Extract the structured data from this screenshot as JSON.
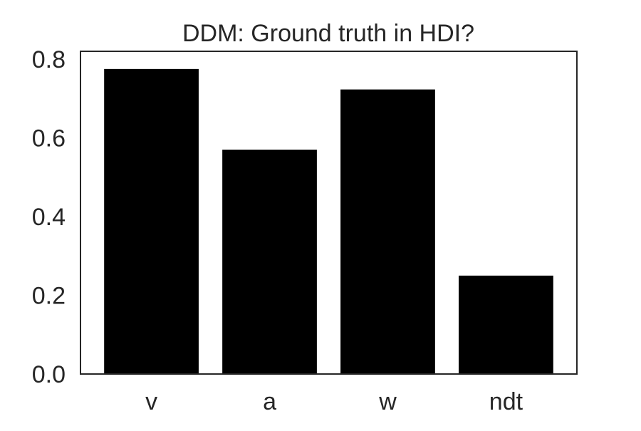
{
  "chart_data": {
    "type": "bar",
    "title": "DDM: Ground truth in HDI?",
    "xlabel": "",
    "ylabel": "",
    "categories": [
      "v",
      "a",
      "w",
      "ndt"
    ],
    "values": [
      0.775,
      0.57,
      0.723,
      0.25
    ],
    "ylim": [
      0,
      0.82
    ],
    "yticks": [
      0.0,
      0.2,
      0.4,
      0.6,
      0.8
    ],
    "ytick_labels": [
      "0.0",
      "0.2",
      "0.4",
      "0.6",
      "0.8"
    ],
    "grid": false,
    "legend": "none",
    "colors": {
      "bar": "#000000",
      "axis": "#262626",
      "text": "#262626",
      "background": "#ffffff"
    }
  }
}
